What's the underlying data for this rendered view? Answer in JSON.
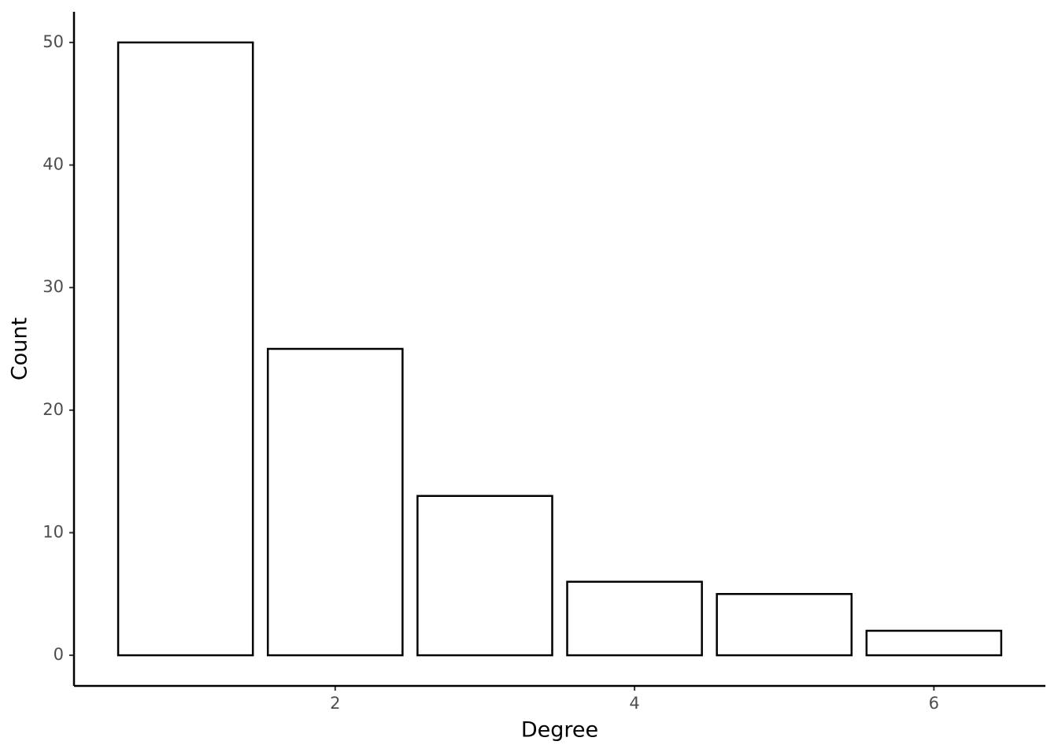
{
  "chart_data": {
    "type": "bar",
    "x": [
      1,
      2,
      3,
      4,
      5,
      6
    ],
    "values": [
      50,
      25,
      13,
      6,
      5,
      2
    ],
    "x_label": "Degree",
    "y_label": "Count",
    "xlim": [
      0.255,
      6.745
    ],
    "xticks": [
      2,
      4,
      6
    ],
    "ylim": [
      -2.5,
      52.5
    ],
    "yticks": [
      0,
      10,
      20,
      30,
      40,
      50
    ],
    "color": "#ffffff",
    "edge_color": "#000000",
    "grid": false
  }
}
